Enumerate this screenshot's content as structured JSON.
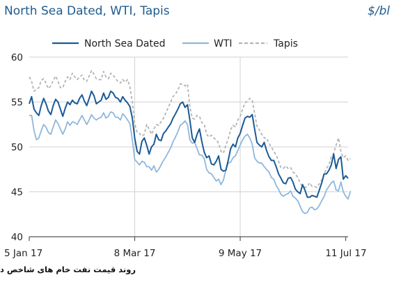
{
  "chart_data": {
    "type": "line",
    "title": "North Sea Dated, WTI, Tapis",
    "unit_label": "$/bl",
    "caption": "روند قیمت نفت خام های شاخص در بازارهای مختلف",
    "xlabel": "",
    "ylabel": "",
    "ylim": [
      40,
      60
    ],
    "y_ticks": [
      "40",
      "45",
      "50",
      "55",
      "60"
    ],
    "x_ticks": [
      {
        "label": "5 Jan 17",
        "index": 0
      },
      {
        "label": "8 Mar 17",
        "index": 44
      },
      {
        "label": "9 May 17",
        "index": 88
      },
      {
        "label": "11 Jul 17",
        "index": 132
      }
    ],
    "grid": true,
    "legend_position": "top",
    "series": [
      {
        "name": "North Sea Dated",
        "color": "#1a5a96",
        "dash": "solid",
        "values": [
          54.8,
          55.6,
          54.2,
          53.8,
          53.5,
          54.6,
          55.4,
          54.8,
          54.0,
          53.6,
          54.6,
          55.3,
          55.0,
          54.2,
          53.4,
          54.3,
          55.0,
          54.7,
          55.2,
          54.9,
          54.8,
          55.4,
          55.8,
          55.1,
          54.6,
          55.4,
          56.2,
          55.7,
          54.8,
          55.0,
          55.2,
          56.0,
          55.3,
          55.5,
          56.2,
          56.0,
          55.5,
          55.4,
          55.0,
          55.6,
          55.2,
          54.9,
          54.5,
          53.2,
          51.0,
          49.5,
          49.2,
          50.6,
          51.0,
          50.2,
          49.2,
          50.0,
          50.3,
          51.4,
          50.8,
          50.7,
          51.5,
          51.8,
          52.2,
          52.6,
          53.2,
          53.7,
          54.2,
          54.8,
          55.0,
          54.4,
          54.7,
          53.0,
          51.0,
          50.5,
          51.4,
          52.0,
          50.6,
          49.4,
          48.8,
          49.0,
          48.1,
          48.0,
          48.4,
          49.0,
          47.5,
          47.3,
          47.4,
          48.5,
          49.8,
          50.3,
          50.0,
          51.0,
          51.5,
          52.4,
          53.2,
          53.4,
          53.3,
          53.6,
          52.0,
          50.5,
          50.2,
          50.0,
          50.5,
          49.6,
          48.9,
          48.5,
          48.5,
          47.8,
          47.0,
          46.5,
          46.0,
          45.9,
          46.5,
          46.6,
          46.1,
          45.3,
          45.0,
          44.8,
          45.8,
          45.2,
          44.4,
          44.4,
          44.6,
          44.5,
          44.4,
          45.2,
          46.0,
          47.0,
          47.0,
          47.4,
          48.0,
          49.2,
          47.6,
          48.6,
          48.9,
          46.4,
          46.8,
          46.5
        ]
      },
      {
        "name": "WTI",
        "color": "#8fb7dc",
        "dash": "solid",
        "values": [
          53.5,
          53.5,
          51.8,
          50.8,
          51.0,
          51.8,
          52.5,
          52.2,
          51.6,
          51.4,
          52.2,
          53.0,
          52.6,
          52.0,
          51.4,
          52.0,
          52.8,
          52.4,
          52.8,
          52.7,
          52.5,
          53.0,
          53.5,
          53.0,
          52.5,
          53.0,
          53.6,
          53.2,
          53.0,
          53.2,
          53.3,
          53.8,
          53.2,
          53.4,
          53.9,
          53.8,
          53.3,
          53.3,
          53.0,
          53.7,
          53.4,
          53.0,
          52.6,
          50.8,
          48.6,
          48.3,
          48.0,
          48.4,
          48.3,
          47.8,
          47.8,
          47.4,
          47.9,
          47.2,
          47.5,
          48.0,
          48.5,
          48.9,
          49.4,
          49.9,
          50.6,
          51.1,
          51.7,
          52.4,
          52.6,
          52.9,
          52.5,
          50.8,
          50.4,
          50.5,
          49.8,
          49.1,
          49.1,
          48.7,
          47.5,
          47.1,
          47.0,
          46.6,
          46.2,
          46.4,
          45.8,
          46.3,
          47.4,
          48.2,
          48.3,
          48.8,
          49.0,
          49.6,
          50.2,
          50.8,
          51.2,
          51.4,
          51.0,
          50.3,
          48.8,
          48.4,
          48.2,
          48.2,
          47.8,
          47.5,
          47.2,
          46.6,
          46.4,
          45.7,
          45.3,
          44.7,
          44.5,
          44.7,
          44.8,
          45.1,
          44.5,
          44.3,
          44.0,
          43.4,
          42.8,
          42.6,
          42.7,
          43.2,
          43.3,
          43.0,
          43.1,
          43.5,
          44.0,
          44.5,
          45.2,
          45.6,
          46.0,
          46.2,
          45.2,
          45.1,
          46.1,
          45.0,
          44.5,
          44.2,
          45.1
        ]
      },
      {
        "name": "Tapis",
        "color": "#b4b4b4",
        "dash": "dashed",
        "values": [
          57.8,
          57.3,
          56.2,
          56.4,
          56.6,
          57.4,
          57.6,
          57.1,
          56.5,
          56.8,
          57.4,
          57.9,
          57.3,
          56.6,
          56.6,
          57.3,
          57.8,
          57.5,
          58.2,
          57.8,
          57.5,
          57.8,
          58.0,
          57.4,
          57.3,
          57.9,
          58.5,
          58.1,
          57.6,
          57.5,
          57.5,
          58.4,
          57.8,
          57.6,
          58.2,
          58.0,
          57.6,
          57.3,
          57.1,
          57.5,
          57.2,
          57.5,
          56.7,
          55.0,
          52.6,
          51.6,
          51.5,
          51.2,
          51.4,
          52.5,
          52.0,
          51.4,
          52.0,
          52.5,
          52.4,
          52.8,
          53.2,
          53.8,
          54.4,
          55.0,
          55.6,
          55.9,
          56.3,
          57.0,
          57.0,
          56.8,
          57.0,
          54.5,
          53.2,
          53.1,
          53.5,
          53.4,
          52.7,
          52.5,
          51.4,
          51.1,
          51.3,
          51.0,
          50.8,
          50.4,
          49.5,
          49.3,
          50.2,
          50.9,
          51.9,
          52.4,
          52.2,
          53.0,
          53.4,
          54.2,
          54.9,
          55.1,
          55.4,
          55.2,
          53.8,
          52.3,
          51.9,
          51.4,
          51.0,
          51.0,
          50.4,
          50.0,
          49.5,
          49.1,
          48.4,
          47.7,
          47.6,
          47.9,
          47.6,
          47.7,
          47.2,
          47.0,
          46.6,
          46.0,
          45.6,
          45.5,
          45.6,
          46.0,
          45.6,
          45.6,
          45.5,
          45.9,
          46.3,
          47.0,
          47.6,
          48.0,
          48.9,
          49.3,
          50.2,
          51.0,
          49.5,
          48.8,
          49.0,
          48.5,
          48.7
        ]
      }
    ]
  }
}
